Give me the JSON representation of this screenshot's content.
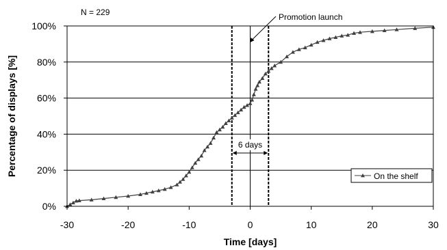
{
  "chart_data": {
    "type": "line",
    "sample_size_label": "N = 229",
    "xlabel": "Time [days]",
    "ylabel": "Percentage of displays [%]",
    "xlim": [
      -30,
      30
    ],
    "ylim": [
      0,
      100
    ],
    "x_ticks": [
      -30,
      -20,
      -10,
      0,
      10,
      20,
      30
    ],
    "y_ticks": [
      0,
      20,
      40,
      60,
      80,
      100
    ],
    "y_tick_labels": [
      "0%",
      "20%",
      "40%",
      "60%",
      "80%",
      "100%"
    ],
    "grid": "horizontal",
    "legend": {
      "position": "right",
      "label": "On the shelf"
    },
    "annotations": {
      "promotion_label": "Promotion launch",
      "promotion_x": 0,
      "window_label": "6 days",
      "window_start": -3,
      "window_end": 3
    },
    "series": [
      {
        "name": "On the shelf",
        "color": "#404040",
        "marker": "triangle",
        "points": [
          [
            -30,
            0
          ],
          [
            -29.5,
            1
          ],
          [
            -29,
            2
          ],
          [
            -28.5,
            3
          ],
          [
            -28,
            3.2
          ],
          [
            -26,
            3.6
          ],
          [
            -24,
            4.3
          ],
          [
            -22,
            5
          ],
          [
            -20,
            5.7
          ],
          [
            -18,
            6.6
          ],
          [
            -17,
            7.3
          ],
          [
            -16,
            8
          ],
          [
            -15,
            8.7
          ],
          [
            -14,
            9.5
          ],
          [
            -13,
            10.5
          ],
          [
            -12,
            12
          ],
          [
            -11.5,
            13.5
          ],
          [
            -11,
            15
          ],
          [
            -10.5,
            17
          ],
          [
            -10,
            19
          ],
          [
            -9.5,
            21.5
          ],
          [
            -9,
            24
          ],
          [
            -8.5,
            26
          ],
          [
            -8,
            28
          ],
          [
            -7.5,
            31
          ],
          [
            -7,
            33
          ],
          [
            -6.5,
            35
          ],
          [
            -6,
            38
          ],
          [
            -5.5,
            41
          ],
          [
            -5,
            42.5
          ],
          [
            -4.5,
            44
          ],
          [
            -4,
            46
          ],
          [
            -3.5,
            47.5
          ],
          [
            -3,
            49
          ],
          [
            -2.5,
            50.5
          ],
          [
            -2,
            52
          ],
          [
            -1.5,
            53.5
          ],
          [
            -1,
            55
          ],
          [
            -0.5,
            56
          ],
          [
            0,
            57
          ],
          [
            0.3,
            59
          ],
          [
            0.6,
            62
          ],
          [
            0.9,
            65
          ],
          [
            1.2,
            67
          ],
          [
            1.5,
            69
          ],
          [
            2,
            71
          ],
          [
            2.5,
            73.5
          ],
          [
            3,
            75
          ],
          [
            3.5,
            76.5
          ],
          [
            4,
            78
          ],
          [
            5,
            80
          ],
          [
            6,
            83
          ],
          [
            7,
            85.5
          ],
          [
            8,
            87
          ],
          [
            9,
            88
          ],
          [
            10,
            89.5
          ],
          [
            11,
            91
          ],
          [
            12,
            92
          ],
          [
            13,
            93
          ],
          [
            14,
            93.7
          ],
          [
            15,
            94.5
          ],
          [
            16,
            95
          ],
          [
            17,
            96
          ],
          [
            18,
            96.5
          ],
          [
            20,
            97
          ],
          [
            22,
            97.5
          ],
          [
            24,
            98
          ],
          [
            27,
            98.7
          ],
          [
            30,
            99.3
          ]
        ]
      }
    ]
  }
}
